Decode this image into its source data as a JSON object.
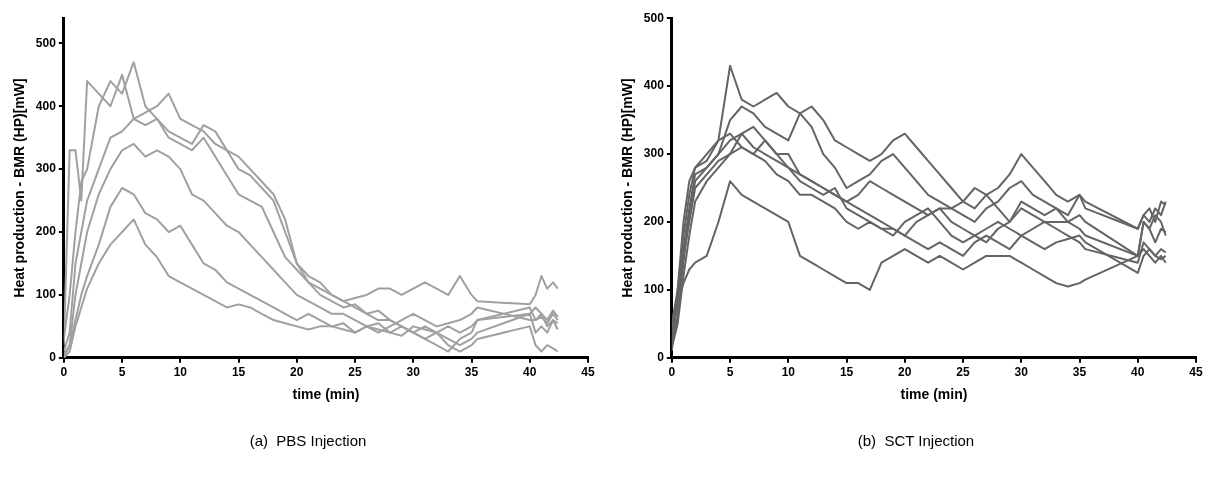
{
  "chart_data": [
    {
      "type": "line",
      "xlabel": "time (min)",
      "ylabel": "Heat production - BMR (HP)[mW]",
      "annotations": [
        "(a)  PBS Injection"
      ],
      "xlim": [
        0,
        45
      ],
      "xticks": [
        0,
        5,
        10,
        15,
        20,
        25,
        30,
        35,
        40,
        45
      ],
      "ylim": [
        0,
        540
      ],
      "yticks": [
        0,
        100,
        200,
        300,
        400,
        500
      ],
      "grid": false,
      "legend": false,
      "marker": "none",
      "line_style": "solid",
      "x": [
        0,
        0.5,
        1,
        1.5,
        2,
        3,
        4,
        5,
        6,
        7,
        8,
        9,
        10,
        11,
        12,
        13,
        14,
        15,
        16,
        17,
        18,
        19,
        20,
        21,
        22,
        23,
        24,
        25,
        26,
        27,
        28,
        29,
        30,
        31,
        32,
        33,
        34,
        35,
        35.5,
        40,
        40.5,
        41,
        41.5,
        42,
        42.4
      ],
      "series": [
        {
          "color": "#a0a0a2",
          "values": [
            20,
            330,
            330,
            250,
            440,
            420,
            400,
            450,
            380,
            370,
            380,
            350,
            340,
            330,
            350,
            320,
            290,
            260,
            250,
            240,
            200,
            160,
            140,
            120,
            100,
            90,
            80,
            85,
            70,
            60,
            60,
            50,
            40,
            30,
            20,
            10,
            30,
            40,
            60,
            80,
            60,
            70,
            50,
            60,
            55
          ]
        },
        {
          "color": "#a0a0a2",
          "values": [
            30,
            100,
            200,
            280,
            300,
            400,
            440,
            420,
            470,
            400,
            380,
            360,
            350,
            340,
            370,
            360,
            330,
            320,
            300,
            280,
            260,
            220,
            150,
            120,
            110,
            100,
            90,
            95,
            100,
            110,
            110,
            100,
            110,
            120,
            110,
            100,
            130,
            100,
            90,
            85,
            100,
            130,
            110,
            120,
            110
          ]
        },
        {
          "color": "#a0a0a2",
          "values": [
            10,
            40,
            150,
            200,
            250,
            300,
            350,
            360,
            380,
            390,
            400,
            420,
            380,
            370,
            360,
            340,
            330,
            300,
            290,
            270,
            250,
            200,
            150,
            130,
            120,
            100,
            90,
            80,
            70,
            75,
            60,
            50,
            40,
            50,
            40,
            30,
            20,
            30,
            40,
            70,
            40,
            50,
            40,
            60,
            45
          ]
        },
        {
          "color": "#a0a0a2",
          "values": [
            0,
            20,
            100,
            150,
            200,
            260,
            300,
            330,
            340,
            320,
            330,
            320,
            300,
            260,
            250,
            230,
            210,
            200,
            180,
            160,
            140,
            120,
            100,
            90,
            80,
            70,
            70,
            60,
            50,
            55,
            40,
            50,
            40,
            30,
            40,
            20,
            10,
            20,
            30,
            50,
            20,
            10,
            20,
            15,
            10
          ]
        },
        {
          "color": "#a0a0a2",
          "values": [
            5,
            20,
            60,
            100,
            130,
            180,
            240,
            270,
            260,
            230,
            220,
            200,
            210,
            180,
            150,
            140,
            120,
            110,
            100,
            90,
            80,
            70,
            60,
            70,
            60,
            50,
            55,
            40,
            50,
            45,
            40,
            35,
            50,
            45,
            40,
            50,
            40,
            50,
            60,
            70,
            80,
            70,
            60,
            75,
            65
          ]
        },
        {
          "color": "#a0a0a2",
          "values": [
            0,
            10,
            50,
            80,
            110,
            150,
            180,
            200,
            220,
            180,
            160,
            130,
            120,
            110,
            100,
            90,
            80,
            85,
            80,
            70,
            60,
            55,
            50,
            45,
            50,
            50,
            45,
            40,
            50,
            40,
            50,
            60,
            70,
            60,
            50,
            55,
            60,
            70,
            80,
            60,
            60,
            65,
            55,
            70,
            60
          ]
        }
      ]
    },
    {
      "type": "line",
      "xlabel": "time (min)",
      "ylabel": "Heat production - BMR (HP)[mW]",
      "annotations": [
        "(b)  SCT Injection"
      ],
      "xlim": [
        0,
        45
      ],
      "xticks": [
        0,
        5,
        10,
        15,
        20,
        25,
        30,
        35,
        40,
        45
      ],
      "ylim": [
        0,
        500
      ],
      "yticks": [
        0,
        100,
        200,
        300,
        400,
        500
      ],
      "grid": false,
      "legend": false,
      "marker": "none",
      "line_style": "solid",
      "x": [
        0,
        0.5,
        1,
        1.5,
        2,
        3,
        4,
        5,
        6,
        7,
        8,
        9,
        10,
        11,
        12,
        13,
        14,
        15,
        16,
        17,
        18,
        19,
        20,
        21,
        22,
        23,
        24,
        25,
        26,
        27,
        28,
        29,
        30,
        31,
        32,
        33,
        34,
        35,
        35.5,
        40,
        40.5,
        41,
        41.5,
        42,
        42.4
      ],
      "series": [
        {
          "color": "#646464",
          "values": [
            10,
            100,
            180,
            240,
            280,
            300,
            320,
            430,
            380,
            370,
            380,
            390,
            370,
            360,
            370,
            350,
            320,
            310,
            300,
            290,
            300,
            320,
            330,
            310,
            290,
            270,
            250,
            230,
            220,
            240,
            250,
            270,
            300,
            280,
            260,
            240,
            230,
            240,
            220,
            190,
            210,
            220,
            200,
            230,
            225
          ]
        },
        {
          "color": "#646464",
          "values": [
            20,
            60,
            140,
            210,
            260,
            280,
            300,
            350,
            370,
            360,
            340,
            330,
            320,
            360,
            340,
            300,
            280,
            250,
            260,
            270,
            290,
            300,
            280,
            260,
            240,
            230,
            220,
            210,
            200,
            220,
            230,
            250,
            260,
            240,
            230,
            220,
            200,
            190,
            180,
            150,
            200,
            190,
            210,
            200,
            180
          ]
        },
        {
          "color": "#646464",
          "values": [
            30,
            80,
            150,
            200,
            250,
            270,
            290,
            300,
            330,
            340,
            320,
            300,
            280,
            270,
            260,
            250,
            240,
            230,
            220,
            210,
            200,
            190,
            180,
            200,
            210,
            220,
            200,
            190,
            180,
            170,
            190,
            200,
            220,
            210,
            200,
            190,
            180,
            170,
            160,
            140,
            170,
            160,
            150,
            160,
            155
          ]
        },
        {
          "color": "#646464",
          "values": [
            40,
            90,
            160,
            220,
            270,
            280,
            300,
            320,
            330,
            310,
            300,
            290,
            280,
            260,
            250,
            240,
            250,
            220,
            210,
            200,
            190,
            180,
            200,
            210,
            220,
            200,
            180,
            170,
            180,
            190,
            200,
            190,
            180,
            190,
            200,
            200,
            200,
            210,
            200,
            150,
            160,
            150,
            140,
            150,
            140
          ]
        },
        {
          "color": "#646464",
          "values": [
            15,
            50,
            120,
            180,
            230,
            260,
            280,
            300,
            310,
            300,
            290,
            270,
            260,
            240,
            240,
            230,
            220,
            200,
            190,
            200,
            190,
            190,
            180,
            170,
            160,
            170,
            160,
            150,
            170,
            180,
            170,
            160,
            180,
            170,
            160,
            170,
            175,
            180,
            170,
            125,
            150,
            160,
            150,
            145,
            150
          ]
        },
        {
          "color": "#646464",
          "values": [
            25,
            80,
            110,
            130,
            140,
            150,
            200,
            260,
            240,
            230,
            220,
            210,
            200,
            150,
            140,
            130,
            120,
            110,
            110,
            100,
            140,
            150,
            160,
            150,
            140,
            150,
            140,
            130,
            140,
            150,
            150,
            150,
            140,
            130,
            120,
            110,
            105,
            110,
            115,
            150,
            200,
            190,
            170,
            190,
            185
          ]
        },
        {
          "color": "#646464",
          "values": [
            50,
            100,
            200,
            260,
            280,
            290,
            320,
            330,
            310,
            300,
            320,
            300,
            300,
            270,
            260,
            250,
            240,
            230,
            240,
            260,
            250,
            240,
            230,
            220,
            210,
            220,
            220,
            230,
            250,
            240,
            220,
            200,
            230,
            220,
            210,
            220,
            210,
            240,
            230,
            190,
            210,
            200,
            220,
            210,
            230
          ]
        }
      ]
    }
  ]
}
